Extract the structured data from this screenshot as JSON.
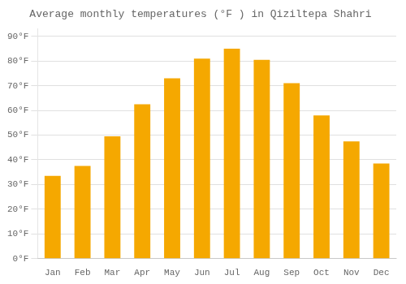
{
  "chart_data": {
    "type": "bar",
    "title": "Average monthly temperatures (°F ) in Qiziltepa Shahri",
    "categories": [
      "Jan",
      "Feb",
      "Mar",
      "Apr",
      "May",
      "Jun",
      "Jul",
      "Aug",
      "Sep",
      "Oct",
      "Nov",
      "Dec"
    ],
    "values": [
      33.5,
      37.5,
      49.5,
      62.5,
      73,
      81,
      85,
      80.5,
      71,
      58,
      47.5,
      38.5
    ],
    "color": "#F5A800",
    "ylim": [
      0,
      93
    ],
    "yticks": [
      {
        "value": 0,
        "label": "0°F"
      },
      {
        "value": 10,
        "label": "10°F"
      },
      {
        "value": 20,
        "label": "20°F"
      },
      {
        "value": 30,
        "label": "30°F"
      },
      {
        "value": 40,
        "label": "40°F"
      },
      {
        "value": 50,
        "label": "50°F"
      },
      {
        "value": 60,
        "label": "60°F"
      },
      {
        "value": 70,
        "label": "70°F"
      },
      {
        "value": 80,
        "label": "80°F"
      },
      {
        "value": 90,
        "label": "90°F"
      }
    ],
    "grid": true
  }
}
